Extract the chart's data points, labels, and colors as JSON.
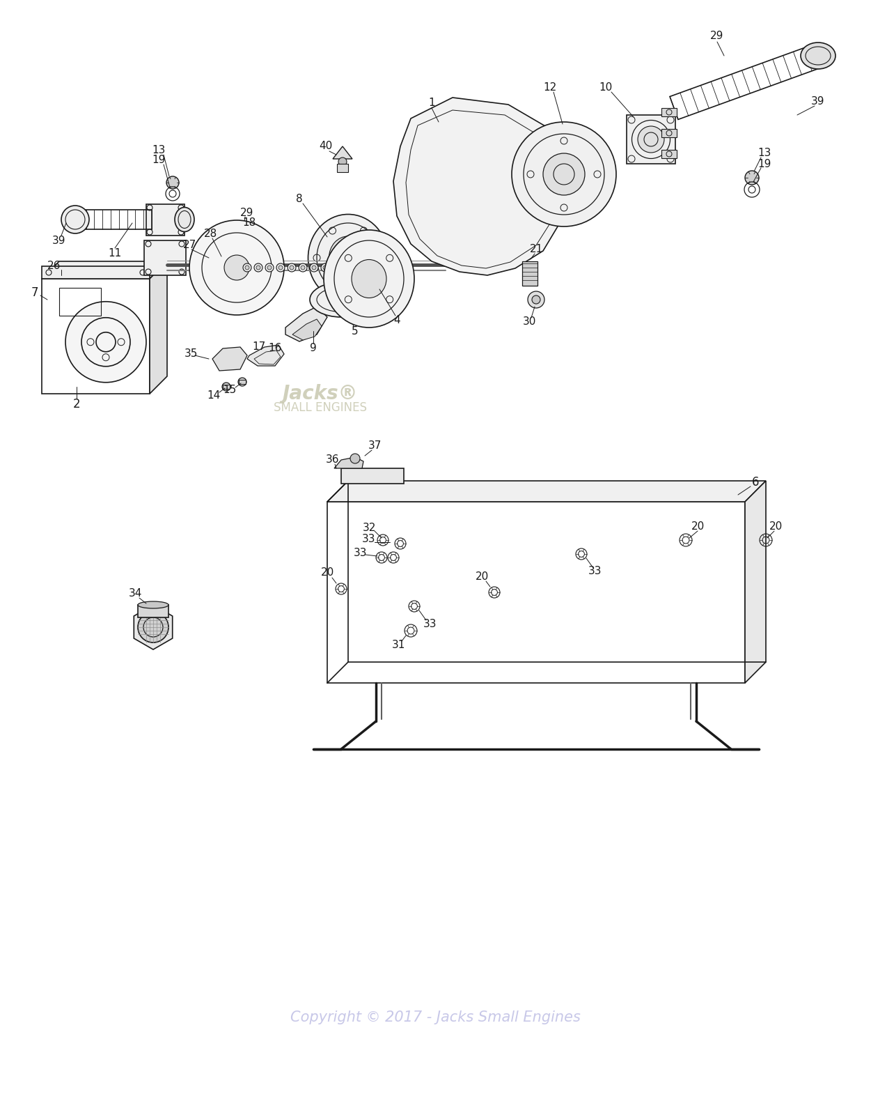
{
  "background_color": "#ffffff",
  "copyright_text": "Copyright © 2017 - Jacks Small Engines",
  "copyright_color": "#c8c8e8",
  "line_color": "#1a1a1a",
  "label_color": "#1a1a1a",
  "figsize": [
    12.51,
    16.0
  ],
  "dpi": 100,
  "watermark_color": "#c8c8b0"
}
